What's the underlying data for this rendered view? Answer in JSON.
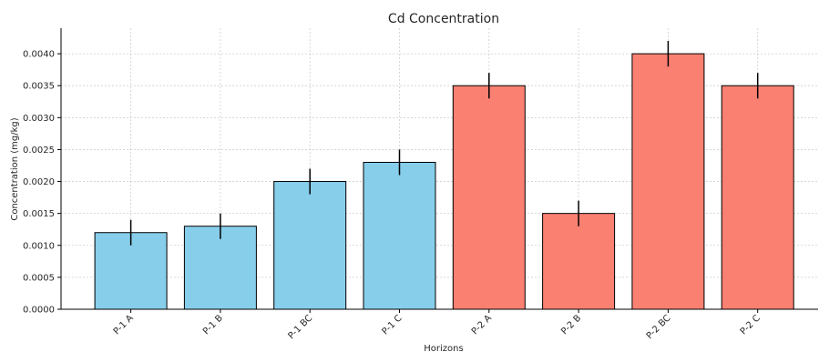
{
  "chart_data": {
    "type": "bar",
    "title": "Cd Concentration",
    "xlabel": "Horizons",
    "ylabel": "Concentration (mg/kg)",
    "ylim": [
      0,
      0.0044
    ],
    "yticks": [
      "0.0000",
      "0.0005",
      "0.0010",
      "0.0015",
      "0.0020",
      "0.0025",
      "0.0030",
      "0.0035",
      "0.0040"
    ],
    "ytick_values": [
      0,
      0.0005,
      0.001,
      0.0015,
      0.002,
      0.0025,
      0.003,
      0.0035,
      0.004
    ],
    "categories": [
      "P-1 A",
      "P-1 B",
      "P-1 BC",
      "P-1 C",
      "P-2 A",
      "P-2 B",
      "P-2 BC",
      "P-2 C"
    ],
    "values": [
      0.0012,
      0.0013,
      0.002,
      0.0023,
      0.0035,
      0.0015,
      0.004,
      0.0035
    ],
    "errors": [
      0.0002,
      0.0002,
      0.0002,
      0.0002,
      0.0002,
      0.0002,
      0.0002,
      0.0002
    ],
    "colors": [
      "#87ceeb",
      "#87ceeb",
      "#87ceeb",
      "#87ceeb",
      "#fa8072",
      "#fa8072",
      "#fa8072",
      "#fa8072"
    ],
    "grid": true
  }
}
